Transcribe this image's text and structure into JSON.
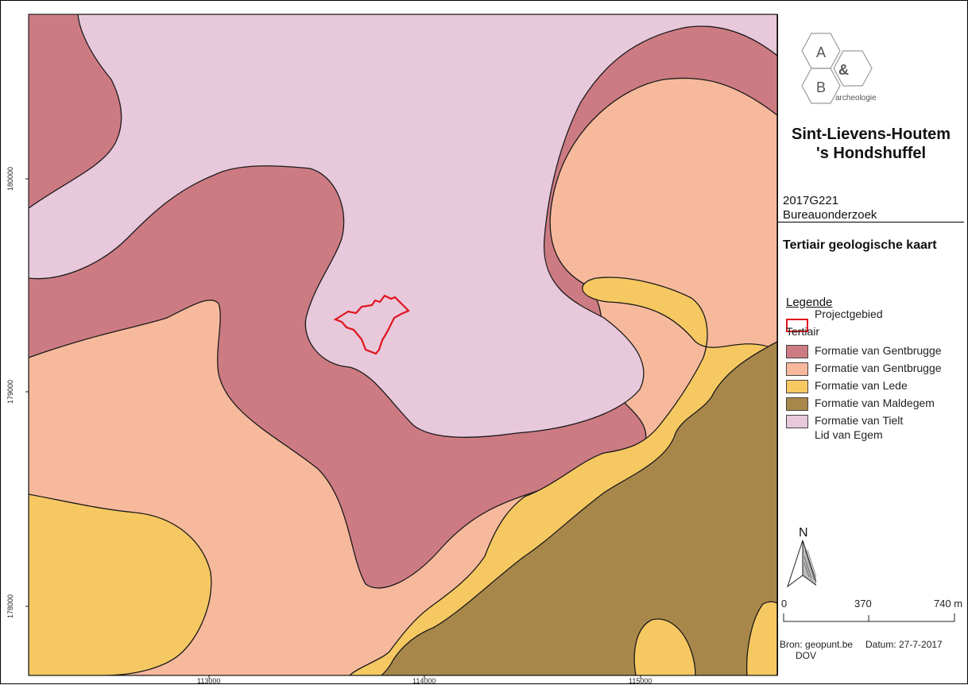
{
  "header": {
    "logo": {
      "letter_a": "A",
      "amp": "&",
      "letter_b": "B",
      "sub": "archeologie"
    },
    "title_line1": "Sint-Lievens-Houtem",
    "title_line2": "'s Hondshuffel",
    "project_code": "2017G221",
    "project_type": "Bureauonderzoek"
  },
  "map_title": "Tertiair geologische kaart",
  "legend": {
    "heading": "Legende",
    "project_label": "Projectgebied",
    "group_label": "Tertiair",
    "items": [
      {
        "label": "Formatie van Gentbrugge",
        "color": "#cd7b83"
      },
      {
        "label": "Formatie van Gentbrugge",
        "color": "#f7b99c"
      },
      {
        "label": "Formatie van Lede",
        "color": "#f6c862"
      },
      {
        "label": "Formatie van Maldegem",
        "color": "#a8874a"
      },
      {
        "label": "Formatie van Tielt",
        "sub": "Lid van Egem",
        "color": "#e8c8db"
      }
    ]
  },
  "north_arrow": {
    "label": "N"
  },
  "scale_bar": {
    "labels": [
      "0",
      "370",
      "740 m"
    ]
  },
  "source": {
    "bron": "Bron: geopunt.be",
    "datum": "Datum: 27-7-2017",
    "dov": "DOV"
  },
  "axis": {
    "x_ticks": [
      "113000",
      "114000",
      "115000"
    ],
    "y_ticks": [
      "180000",
      "179000",
      "178000"
    ]
  },
  "colors": {
    "project_outline": "#e0141e",
    "boundary": "#1a1a1a"
  }
}
